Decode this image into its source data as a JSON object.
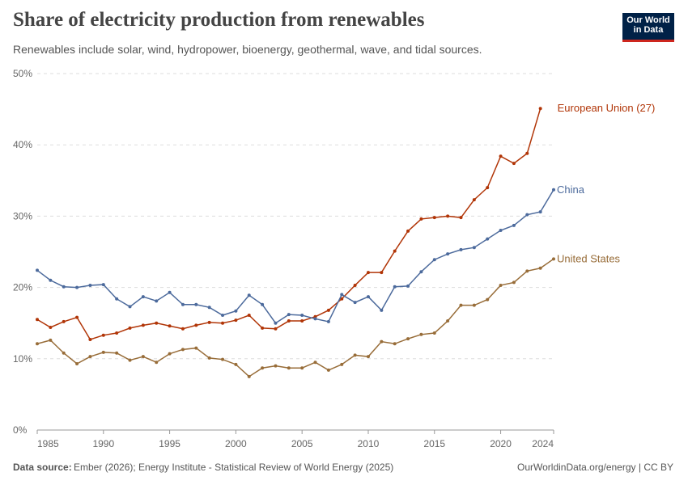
{
  "chart_data": {
    "type": "line",
    "title": "Share of electricity production from renewables",
    "subtitle": "Renewables include solar, wind, hydropower, bioenergy, geothermal, wave, and tidal sources.",
    "logo": [
      "Our World",
      "in Data"
    ],
    "source_label": "Data source:",
    "source_text": "Ember (2026); Energy Institute - Statistical Review of World Energy (2025)",
    "footer_right": "OurWorldinData.org/energy | CC BY",
    "x": [
      1985,
      1986,
      1987,
      1988,
      1989,
      1990,
      1991,
      1992,
      1993,
      1994,
      1995,
      1996,
      1997,
      1998,
      1999,
      2000,
      2001,
      2002,
      2003,
      2004,
      2005,
      2006,
      2007,
      2008,
      2009,
      2010,
      2011,
      2012,
      2013,
      2014,
      2015,
      2016,
      2017,
      2018,
      2019,
      2020,
      2021,
      2022,
      2023,
      2024
    ],
    "xlim": [
      1985,
      2024
    ],
    "xticks": [
      1985,
      1990,
      1995,
      2000,
      2005,
      2010,
      2015,
      2020,
      2024
    ],
    "ylim": [
      0,
      50
    ],
    "yticks": [
      {
        "value": 0,
        "label": "0%"
      },
      {
        "value": 10,
        "label": "10%"
      },
      {
        "value": 20,
        "label": "20%"
      },
      {
        "value": 30,
        "label": "30%"
      },
      {
        "value": 40,
        "label": "40%"
      },
      {
        "value": 50,
        "label": "50%"
      }
    ],
    "grid": true,
    "series": [
      {
        "name": "European Union (27)",
        "color": "#b13507",
        "values": [
          15.5,
          14.4,
          15.2,
          15.8,
          12.7,
          13.3,
          13.6,
          14.3,
          14.7,
          15.0,
          14.6,
          14.2,
          14.7,
          15.1,
          15.0,
          15.4,
          16.1,
          14.3,
          14.2,
          15.3,
          15.3,
          15.9,
          16.8,
          18.4,
          20.3,
          22.1,
          22.1,
          25.1,
          27.9,
          29.6,
          29.8,
          30.0,
          29.8,
          32.3,
          34.0,
          38.4,
          37.4,
          38.8,
          45.1,
          null
        ]
      },
      {
        "name": "China",
        "color": "#4c6a9c",
        "values": [
          22.4,
          21.0,
          20.1,
          20.0,
          20.3,
          20.4,
          18.4,
          17.3,
          18.7,
          18.1,
          19.3,
          17.6,
          17.6,
          17.2,
          16.1,
          16.7,
          18.9,
          17.6,
          15.0,
          16.2,
          16.1,
          15.6,
          15.2,
          19.0,
          17.9,
          18.7,
          16.8,
          20.1,
          20.2,
          22.2,
          23.9,
          24.7,
          25.3,
          25.6,
          26.8,
          28.0,
          28.7,
          30.2,
          30.6,
          33.7
        ]
      },
      {
        "name": "United States",
        "color": "#986d39",
        "values": [
          12.1,
          12.6,
          10.8,
          9.3,
          10.3,
          10.9,
          10.8,
          9.8,
          10.3,
          9.5,
          10.7,
          11.3,
          11.5,
          10.1,
          9.9,
          9.2,
          7.5,
          8.7,
          9.0,
          8.7,
          8.7,
          9.5,
          8.4,
          9.2,
          10.5,
          10.3,
          12.4,
          12.1,
          12.8,
          13.4,
          13.6,
          15.3,
          17.5,
          17.5,
          18.3,
          20.3,
          20.7,
          22.3,
          22.7,
          24.0
        ]
      }
    ]
  }
}
